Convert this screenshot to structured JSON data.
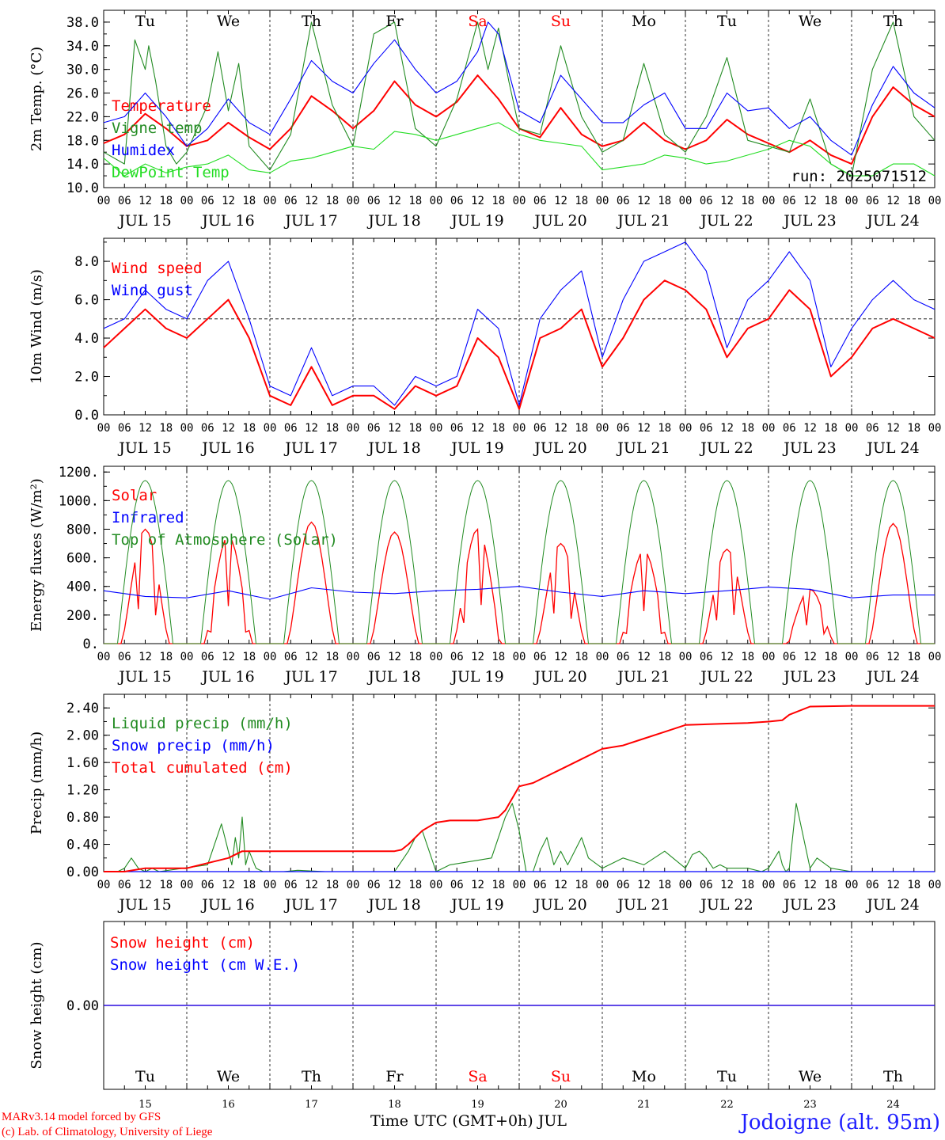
{
  "colors": {
    "red": "#ff0000",
    "green": "#228b22",
    "lightgreen": "#22dd22",
    "blue": "#0000ff",
    "axis": "#000000"
  },
  "day_labels": [
    "Tu",
    "We",
    "Th",
    "Fr",
    "Sa",
    "Su",
    "Mo",
    "Tu",
    "We",
    "Th"
  ],
  "date_labels": [
    "JUL 15",
    "JUL 16",
    "JUL 17",
    "JUL 18",
    "JUL 19",
    "JUL 20",
    "JUL 21",
    "JUL 22",
    "JUL 23",
    "JUL 24"
  ],
  "hour_labels": [
    "00",
    "06",
    "12",
    "18"
  ],
  "bottom_day_numbers": [
    "15",
    "16",
    "17",
    "18",
    "19",
    "20",
    "21",
    "22",
    "23",
    "24"
  ],
  "footer": {
    "model": "MARv3.14 model forced by GFS",
    "credit": "(c) Lab. of Climatology, University of Liege",
    "xlabel": "Time UTC (GMT+0h) JUL",
    "station": "Jodoigne (alt. 95m)"
  },
  "chart_data": [
    {
      "type": "line",
      "ylabel": "2m Temp. (°C)",
      "ylim": [
        10,
        40
      ],
      "yticks": [
        "38.0",
        "34.0",
        "30.0",
        "26.0",
        "22.0",
        "18.0",
        "14.0",
        "10.0"
      ],
      "run_label": "run: 2025071512",
      "x_unit": "hours since JUL 15 00 UTC",
      "series": [
        {
          "name": "Temperature",
          "color": "red",
          "x": [
            0,
            6,
            12,
            18,
            24,
            30,
            36,
            42,
            48,
            54,
            60,
            66,
            72,
            78,
            84,
            90,
            96,
            102,
            108,
            114,
            120,
            126,
            132,
            138,
            144,
            150,
            156,
            162,
            168,
            174,
            180,
            186,
            192,
            198,
            204,
            210,
            216,
            222,
            228,
            234,
            240
          ],
          "values": [
            17.5,
            19,
            22.5,
            20,
            17,
            18,
            21,
            18.5,
            16.5,
            20,
            25.5,
            23,
            20,
            23,
            28,
            24,
            22,
            24.5,
            29,
            25,
            20,
            18.5,
            23.5,
            19,
            17,
            18,
            21,
            18,
            16.5,
            18,
            21.5,
            19,
            17.5,
            16,
            18,
            15.5,
            14,
            22,
            27,
            24,
            22
          ]
        },
        {
          "name": "Vigne temp",
          "color": "green",
          "x": [
            0,
            6,
            9,
            12,
            13,
            15,
            18,
            21,
            24,
            30,
            33,
            36,
            39,
            42,
            48,
            54,
            60,
            66,
            72,
            78,
            84,
            90,
            96,
            102,
            108,
            111,
            114,
            117,
            120,
            126,
            132,
            138,
            144,
            150,
            156,
            162,
            168,
            174,
            180,
            186,
            192,
            198,
            204,
            210,
            216,
            222,
            228,
            234,
            240
          ],
          "values": [
            16,
            14,
            35,
            30,
            34,
            28,
            17,
            14,
            16,
            24,
            33,
            23,
            31,
            17,
            13,
            19,
            38,
            24,
            17,
            36,
            38,
            20,
            17,
            25,
            38,
            30,
            37,
            28,
            20,
            19,
            34,
            22,
            16,
            18,
            31,
            19,
            16,
            22,
            32,
            18,
            17,
            16,
            25,
            14,
            12,
            30,
            38,
            22,
            18
          ]
        },
        {
          "name": "Humidex",
          "color": "blue",
          "x": [
            0,
            6,
            12,
            18,
            24,
            30,
            36,
            42,
            48,
            54,
            60,
            66,
            72,
            78,
            84,
            90,
            96,
            102,
            108,
            111,
            114,
            120,
            126,
            132,
            138,
            144,
            150,
            156,
            162,
            168,
            174,
            180,
            186,
            192,
            198,
            204,
            210,
            216,
            222,
            228,
            234,
            240
          ],
          "values": [
            21,
            22,
            26,
            22,
            17,
            20,
            25,
            21,
            19,
            25,
            31.5,
            28,
            26,
            31,
            35,
            30,
            26,
            28,
            33,
            38,
            36,
            23,
            21,
            29,
            25,
            21,
            21,
            24,
            26,
            20,
            20,
            26,
            23,
            23.5,
            20,
            22,
            18,
            15.5,
            24,
            30.5,
            26,
            23.5
          ]
        },
        {
          "name": "DewPoint Temp",
          "color": "lightgreen",
          "x": [
            0,
            6,
            12,
            18,
            24,
            30,
            36,
            42,
            48,
            54,
            60,
            66,
            72,
            78,
            84,
            90,
            96,
            102,
            108,
            114,
            120,
            126,
            132,
            138,
            144,
            150,
            156,
            162,
            168,
            174,
            180,
            186,
            192,
            198,
            204,
            210,
            216,
            222,
            228,
            234,
            240
          ],
          "values": [
            15,
            12,
            14,
            12.5,
            13.5,
            14,
            15.5,
            13,
            12.5,
            14.5,
            15,
            16,
            17,
            16.5,
            19.5,
            19,
            18,
            19,
            20,
            21,
            19,
            18,
            17.5,
            17,
            13,
            13.5,
            14,
            15.5,
            15,
            14,
            14.5,
            15.5,
            16.5,
            18,
            17,
            14,
            12,
            12,
            14,
            14,
            12
          ]
        }
      ]
    },
    {
      "type": "line",
      "ylabel": "10m Wind (m/s)",
      "ylim": [
        0,
        9
      ],
      "yticks": [
        "8.0",
        "6.0",
        "4.0",
        "2.0",
        "0.0"
      ],
      "reference_line": 5,
      "x_unit": "hours since JUL 15 00 UTC",
      "series": [
        {
          "name": "Wind speed",
          "color": "red",
          "x": [
            0,
            6,
            12,
            18,
            24,
            30,
            36,
            42,
            48,
            54,
            60,
            66,
            72,
            78,
            84,
            90,
            96,
            102,
            108,
            114,
            120,
            126,
            132,
            138,
            144,
            150,
            156,
            162,
            168,
            174,
            180,
            186,
            192,
            198,
            204,
            210,
            216,
            222,
            228,
            234,
            240
          ],
          "values": [
            3.5,
            4.5,
            5.5,
            4.5,
            4,
            5,
            6,
            4,
            1,
            0.5,
            2.5,
            0.5,
            1,
            1,
            0.3,
            1.5,
            1,
            1.5,
            4,
            3,
            0.3,
            4,
            4.5,
            5.5,
            2.5,
            4,
            6,
            7,
            6.5,
            5.5,
            3,
            4.5,
            5,
            6.5,
            5.5,
            2,
            3,
            4.5,
            5,
            4.5,
            4
          ]
        },
        {
          "name": "Wind gust",
          "color": "blue",
          "x": [
            0,
            6,
            12,
            18,
            24,
            30,
            36,
            42,
            48,
            54,
            60,
            66,
            72,
            78,
            84,
            90,
            96,
            102,
            108,
            114,
            120,
            126,
            132,
            138,
            144,
            150,
            156,
            162,
            168,
            174,
            180,
            186,
            192,
            198,
            204,
            210,
            216,
            222,
            228,
            234,
            240
          ],
          "values": [
            4.5,
            5,
            6.5,
            5.5,
            5,
            7,
            8,
            5,
            1.5,
            1,
            3.5,
            1,
            1.5,
            1.5,
            0.5,
            2,
            1.5,
            2,
            5.5,
            4.5,
            0.5,
            5,
            6.5,
            7.5,
            3,
            6,
            8,
            8.5,
            9,
            7.5,
            3.5,
            6,
            7,
            8.5,
            7,
            2.5,
            4.5,
            6,
            7,
            6,
            5.5
          ]
        }
      ]
    },
    {
      "type": "line",
      "ylabel": "Energy fluxes (W/m²)",
      "ylim": [
        0,
        1200
      ],
      "yticks": [
        "1200.",
        "1000.",
        "800.",
        "600.",
        "400.",
        "200.",
        "0."
      ],
      "x_unit": "hours since JUL 15 00 UTC",
      "series": [
        {
          "name": "Solar",
          "color": "red",
          "peaks": [
            800,
            750,
            850,
            780,
            800,
            700,
            650,
            660,
            380,
            840
          ]
        },
        {
          "name": "Infrared",
          "color": "blue",
          "x": [
            0,
            12,
            24,
            36,
            48,
            60,
            72,
            84,
            96,
            108,
            120,
            132,
            144,
            156,
            168,
            180,
            192,
            204,
            216,
            228,
            240
          ],
          "values": [
            370,
            330,
            320,
            370,
            310,
            390,
            360,
            350,
            370,
            380,
            400,
            360,
            330,
            370,
            350,
            370,
            395,
            380,
            320,
            340,
            340
          ]
        },
        {
          "name": "Top of Atmosphere (Solar)",
          "color": "green",
          "peak": 1140
        }
      ]
    },
    {
      "type": "line",
      "ylabel": "Precip (mm/h)",
      "ylim": [
        0,
        2.6
      ],
      "yticks": [
        "2.40",
        "2.00",
        "1.60",
        "1.20",
        "0.80",
        "0.40",
        "0.00"
      ],
      "x_unit": "hours since JUL 15 00 UTC",
      "series": [
        {
          "name": "Liquid precip (mm/h)",
          "color": "green",
          "x": [
            0,
            4,
            6,
            8,
            10,
            12,
            14,
            16,
            30,
            34,
            36,
            37,
            38,
            39,
            40,
            41,
            42,
            44,
            46,
            52,
            56,
            64,
            84,
            88,
            90,
            92,
            94,
            96,
            100,
            112,
            116,
            118,
            120,
            122,
            124,
            126,
            128,
            130,
            132,
            134,
            136,
            138,
            140,
            144,
            150,
            156,
            162,
            168,
            170,
            172,
            174,
            176,
            178,
            180,
            186,
            190,
            192,
            195,
            196,
            197,
            198,
            200,
            204,
            206,
            210,
            216,
            240
          ],
          "values": [
            0,
            0,
            0.05,
            0.2,
            0.05,
            0,
            0.05,
            0,
            0.1,
            0.7,
            0.3,
            0.1,
            0.5,
            0.2,
            0.8,
            0.1,
            0.3,
            0.05,
            0,
            0,
            0.02,
            0,
            0,
            0.3,
            0.5,
            0.6,
            0.3,
            0,
            0.1,
            0.2,
            0.8,
            1.0,
            0.6,
            0,
            0,
            0.3,
            0.5,
            0.1,
            0.3,
            0.1,
            0.3,
            0.5,
            0.2,
            0.05,
            0.2,
            0.1,
            0.3,
            0.05,
            0.25,
            0.3,
            0.2,
            0.05,
            0.1,
            0.05,
            0.05,
            0,
            0.05,
            0.3,
            0.1,
            0,
            0.05,
            1.0,
            0.05,
            0.2,
            0.05,
            0,
            0
          ]
        },
        {
          "name": "Snow precip (mm/h)",
          "color": "blue",
          "values_all": 0
        },
        {
          "name": "Total cumulated (cm)",
          "color": "red",
          "x": [
            0,
            6,
            12,
            24,
            36,
            40,
            48,
            60,
            72,
            84,
            86,
            88,
            92,
            96,
            100,
            108,
            114,
            116,
            120,
            124,
            128,
            132,
            136,
            144,
            150,
            156,
            162,
            168,
            174,
            180,
            186,
            192,
            196,
            198,
            204,
            216,
            240
          ],
          "values": [
            0,
            0,
            0.05,
            0.05,
            0.2,
            0.3,
            0.3,
            0.3,
            0.3,
            0.3,
            0.32,
            0.4,
            0.6,
            0.72,
            0.75,
            0.75,
            0.8,
            0.9,
            1.25,
            1.3,
            1.4,
            1.5,
            1.6,
            1.8,
            1.85,
            1.95,
            2.05,
            2.15,
            2.16,
            2.17,
            2.18,
            2.2,
            2.22,
            2.3,
            2.42,
            2.43,
            2.43
          ]
        }
      ]
    },
    {
      "type": "line",
      "ylabel": "Snow height (cm)",
      "yticks": [
        "0.00"
      ],
      "series": [
        {
          "name": "Snow height (cm)",
          "color": "red",
          "values_all": 0
        },
        {
          "name": "Snow height (cm W.E.)",
          "color": "blue",
          "values_all": 0
        }
      ]
    }
  ]
}
